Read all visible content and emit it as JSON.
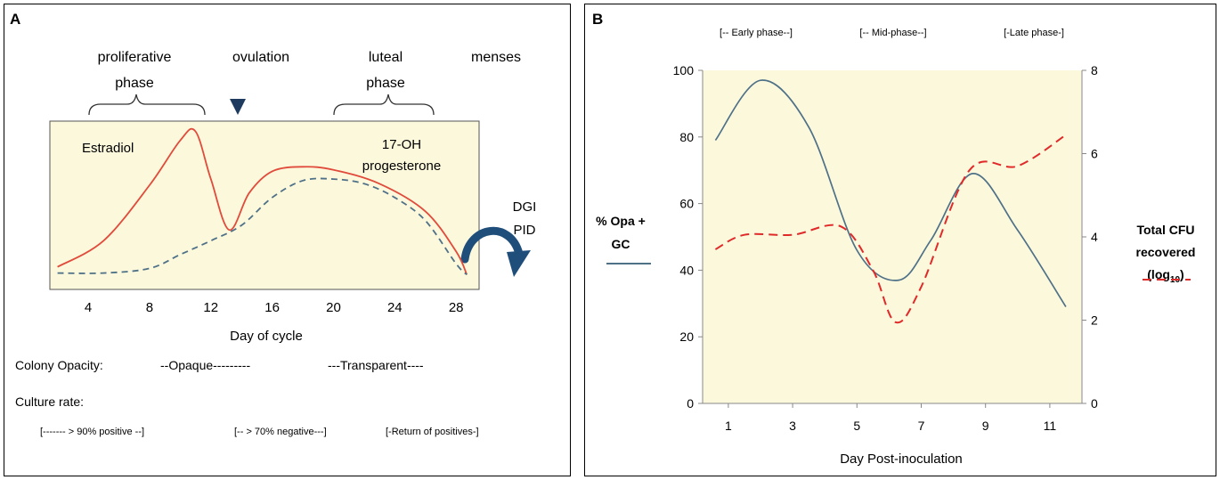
{
  "panel_a": {
    "label": "A",
    "phases": {
      "proliferative_1": "proliferative",
      "proliferative_2": "phase",
      "ovulation": "ovulation",
      "luteal_1": "luteal",
      "luteal_2": "phase",
      "menses": "menses"
    },
    "estradiol_label": "Estradiol",
    "progesterone_1": "17-OH",
    "progesterone_2": "progesterone",
    "dgi": "DGI",
    "pid": "PID",
    "colony_opacity_label": "Colony Opacity:",
    "opaque": "--Opaque---------",
    "transparent": "---Transparent----",
    "culture_rate_label": "Culture rate:",
    "culture_positive": "[------- > 90% positive  --]",
    "culture_negative": "[-- > 70% negative---]",
    "culture_return": "[-Return of positives-]",
    "colors": {
      "background": "#fcf8dc",
      "estradiol": "#e04b3b",
      "progesterone": "#4f7188",
      "arrow": "#1f4e7a"
    }
  },
  "panel_b": {
    "label": "B",
    "phase_early": "[-- Early  phase--]",
    "phase_mid": "[-- Mid-phase--]",
    "phase_late": "[-Late phase-]",
    "left_axis_1": "% Opa +",
    "left_axis_2": "GC",
    "right_axis_1": "Total CFU",
    "right_axis_2": "recovered",
    "right_axis_log": "(log",
    "right_axis_sub": "10",
    "right_axis_close": ")",
    "colors": {
      "background": "#fcf8dc",
      "opa": "#4f7188",
      "cfu": "#e02a2a"
    }
  },
  "chart_data": [
    {
      "type": "line",
      "title": "",
      "xlabel": "Day of cycle",
      "ylabel": "",
      "x_ticks": [
        4,
        8,
        12,
        16,
        20,
        24,
        28
      ],
      "xlim": [
        1.5,
        29.5
      ],
      "series": [
        {
          "name": "Estradiol",
          "style": "solid",
          "color": "#e04b3b",
          "x": [
            2,
            5,
            8,
            10,
            11,
            12,
            13.2,
            14.5,
            16,
            18,
            20,
            23,
            26,
            28,
            28.7
          ],
          "y": [
            0.1,
            0.27,
            0.63,
            0.92,
            0.98,
            0.67,
            0.34,
            0.58,
            0.72,
            0.75,
            0.73,
            0.64,
            0.46,
            0.2,
            0.05
          ]
        },
        {
          "name": "17-OH progesterone",
          "style": "dashed",
          "color": "#4f7188",
          "x": [
            2,
            5,
            8,
            10,
            12,
            14,
            16,
            18,
            20,
            22,
            24,
            26,
            28,
            28.7
          ],
          "y": [
            0.06,
            0.06,
            0.09,
            0.18,
            0.27,
            0.37,
            0.55,
            0.66,
            0.67,
            0.64,
            0.55,
            0.4,
            0.12,
            0.05
          ]
        }
      ]
    },
    {
      "type": "line",
      "title": "",
      "xlabel": "Day Post-inoculation",
      "ylabel": "% Opa + GC",
      "y2label": "Total CFU recovered (log10)",
      "x_ticks": [
        1,
        3,
        5,
        7,
        9,
        11
      ],
      "xlim": [
        0.2,
        12
      ],
      "ylim": [
        0,
        100
      ],
      "y_ticks": [
        0,
        20,
        40,
        60,
        80,
        100
      ],
      "y2lim": [
        0,
        8
      ],
      "y2_ticks": [
        0,
        2,
        4,
        6,
        8
      ],
      "series": [
        {
          "name": "% Opa + GC",
          "axis": "left",
          "style": "solid",
          "color": "#4f7188",
          "x": [
            0.6,
            2,
            3.5,
            5,
            6.3,
            7.3,
            8.6,
            10,
            11.5
          ],
          "y": [
            79,
            97,
            83,
            46,
            37,
            49,
            69,
            52,
            29
          ]
        },
        {
          "name": "Total CFU recovered (log10)",
          "axis": "right",
          "style": "dashed",
          "color": "#e02a2a",
          "x": [
            0.6,
            1.5,
            3,
            4.5,
            5.5,
            6.2,
            7,
            8.5,
            10,
            11.5
          ],
          "y": [
            3.7,
            4.05,
            4.05,
            4.25,
            3.2,
            1.95,
            2.8,
            5.6,
            5.7,
            6.45
          ]
        }
      ]
    }
  ]
}
